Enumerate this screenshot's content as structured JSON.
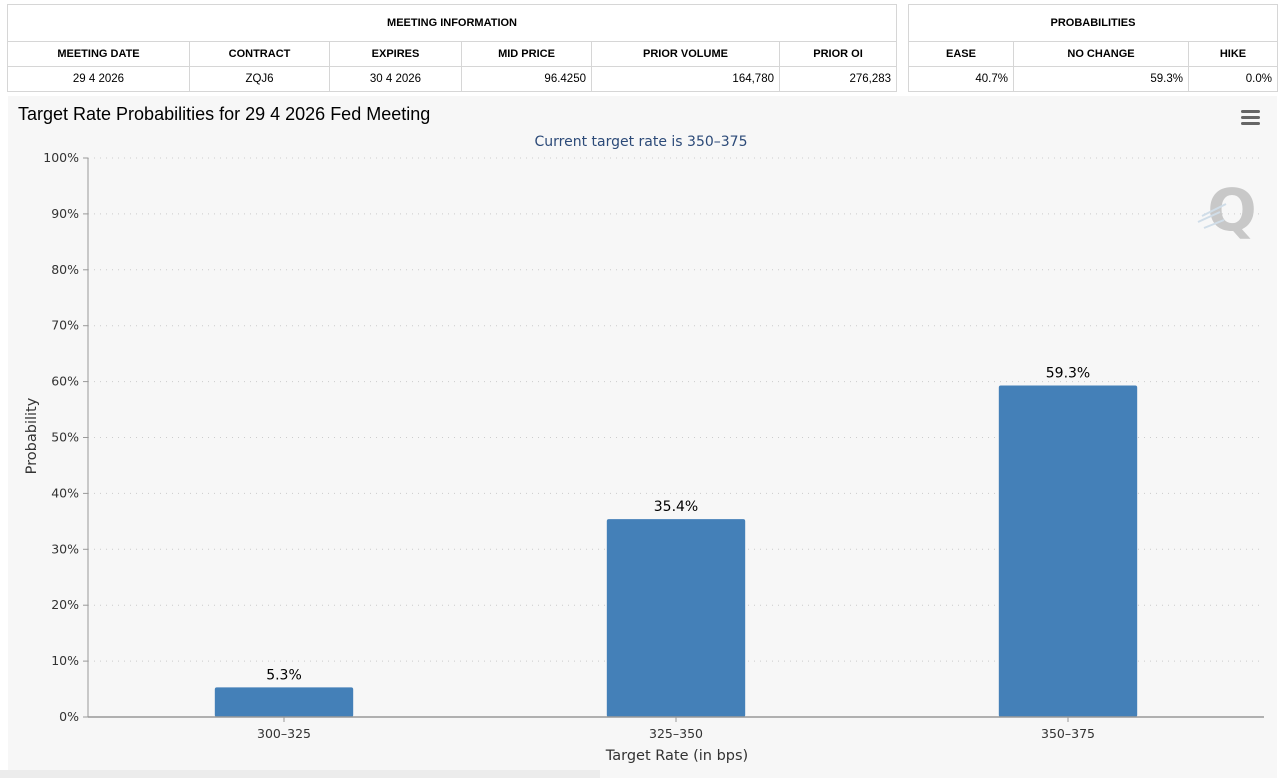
{
  "meeting_info": {
    "title": "MEETING INFORMATION",
    "headers": [
      "MEETING DATE",
      "CONTRACT",
      "EXPIRES",
      "MID PRICE",
      "PRIOR VOLUME",
      "PRIOR OI"
    ],
    "row": [
      "29 4 2026",
      "ZQJ6",
      "30 4 2026",
      "96.4250",
      "164,780",
      "276,283"
    ]
  },
  "probabilities": {
    "title": "PROBABILITIES",
    "headers": [
      "EASE",
      "NO CHANGE",
      "HIKE"
    ],
    "row": [
      "40.7%",
      "59.3%",
      "0.0%"
    ]
  },
  "chart_data": {
    "type": "bar",
    "title": "Target Rate Probabilities for 29 4 2026 Fed Meeting",
    "subtitle": "Current target rate is 350–375",
    "xlabel": "Target Rate (in bps)",
    "ylabel": "Probability",
    "categories": [
      "300–325",
      "325–350",
      "350–375"
    ],
    "values": [
      5.3,
      35.4,
      59.3
    ],
    "data_labels": [
      "5.3%",
      "35.4%",
      "59.3%"
    ],
    "ylim": [
      0,
      100
    ],
    "yticks": [
      0,
      10,
      20,
      30,
      40,
      50,
      60,
      70,
      80,
      90,
      100
    ],
    "ytick_labels": [
      "0%",
      "10%",
      "20%",
      "30%",
      "40%",
      "50%",
      "60%",
      "70%",
      "80%",
      "90%",
      "100%"
    ],
    "grid": "dotted horizontal",
    "colors": {
      "bar": "#4480b8",
      "grid": "#cccccc",
      "axis": "#999999",
      "text": "#333333",
      "subtitle": "#2c4a78"
    }
  },
  "watermark": {
    "letter": "Q",
    "color": "#c8c8c8"
  },
  "menu": {
    "icon": "hamburger-menu-icon"
  }
}
